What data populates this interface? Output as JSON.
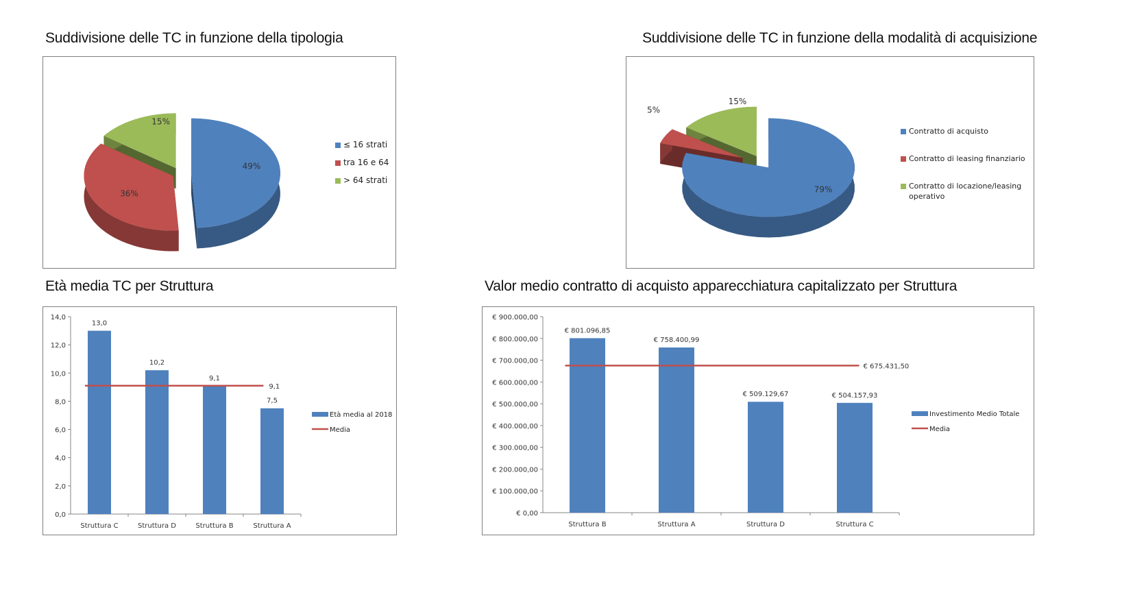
{
  "titles": {
    "chart1": "Suddivisione delle TC in funzione della tipologia",
    "chart2": "Suddivisione delle TC in funzione della modalità di acquisizione",
    "chart3": "Età media TC per Struttura",
    "chart4": "Valor medio contratto di acquisto apparecchiatura capitalizzato per Struttura"
  },
  "chart_data": [
    {
      "type": "pie",
      "title": "Suddivisione delle TC in funzione della tipologia",
      "categories": [
        "≤ 16 strati",
        "tra 16 e 64",
        "> 64 strati"
      ],
      "values": [
        49,
        36,
        15
      ],
      "labels": [
        "49%",
        "36%",
        "15%"
      ],
      "colors": [
        "#4f81bd",
        "#c0504d",
        "#9bbb59"
      ],
      "legend": "right",
      "exploded": true,
      "style": "3d"
    },
    {
      "type": "pie",
      "title": "Suddivisione delle TC in funzione della modalità di acquisizione",
      "categories": [
        "Contratto di acquisto",
        "Contratto di leasing finanziario",
        "Contratto di locazione/leasing operativo"
      ],
      "values": [
        79,
        5,
        15
      ],
      "labels": [
        "79%",
        "5%",
        "15%"
      ],
      "colors": [
        "#4f81bd",
        "#c0504d",
        "#9bbb59"
      ],
      "legend": "right",
      "exploded": true,
      "style": "3d"
    },
    {
      "type": "bar",
      "title": "Età media TC per Struttura",
      "categories": [
        "Struttura C",
        "Struttura D",
        "Struttura B",
        "Struttura A"
      ],
      "series": [
        {
          "name": "Età media al 2018",
          "values": [
            13.0,
            10.2,
            9.1,
            7.5
          ],
          "labels": [
            "13,0",
            "10,2",
            "9,1",
            "7,5"
          ],
          "color": "#4f81bd"
        },
        {
          "name": "Media",
          "type": "line",
          "value": 9.1,
          "label": "9,1",
          "color": "#c0504d"
        }
      ],
      "ylim": [
        0,
        14
      ],
      "yticks": [
        "0,0",
        "2,0",
        "4,0",
        "6,0",
        "8,0",
        "10,0",
        "12,0",
        "14,0"
      ],
      "legend": "right",
      "grid": false
    },
    {
      "type": "bar",
      "title": "Valor medio contratto di acquisto apparecchiatura capitalizzato per Struttura",
      "categories": [
        "Struttura B",
        "Struttura A",
        "Struttura D",
        "Struttura C"
      ],
      "series": [
        {
          "name": "Investimento Medio Totale",
          "values": [
            801096.85,
            758400.99,
            509129.67,
            504157.93
          ],
          "labels": [
            "€ 801.096,85",
            "€ 758.400,99",
            "€ 509.129,67",
            "€ 504.157,93"
          ],
          "color": "#4f81bd"
        },
        {
          "name": "Media",
          "type": "line",
          "value": 675431.5,
          "label": "€ 675.431,50",
          "color": "#c0504d"
        }
      ],
      "ylim": [
        0,
        900000
      ],
      "yticks": [
        "€ 0,00",
        "€ 100.000,00",
        "€ 200.000,00",
        "€ 300.000,00",
        "€ 400.000,00",
        "€ 500.000,00",
        "€ 600.000,00",
        "€ 700.000,00",
        "€ 800.000,00",
        "€ 900.000,00"
      ],
      "legend": "right",
      "grid": false
    }
  ]
}
